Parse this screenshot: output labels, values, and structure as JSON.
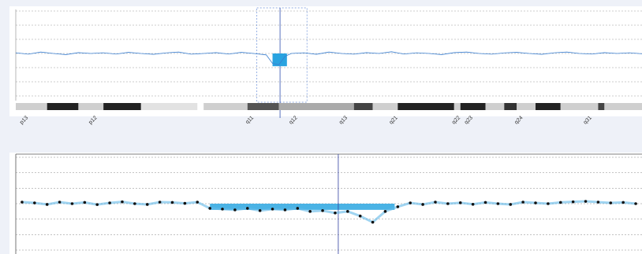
{
  "xlim": [
    0,
    100
  ],
  "top_panel": {
    "ylim": [
      -3,
      3
    ],
    "yticks": [
      -3,
      -2,
      -1,
      0,
      1,
      2,
      3
    ],
    "trace": {
      "color": "#3b7fd0",
      "x": [
        0,
        2,
        4,
        6,
        8,
        10,
        12,
        14,
        16,
        18,
        20,
        22,
        24,
        26,
        28,
        30,
        32,
        34,
        36,
        38,
        40,
        41,
        42,
        43,
        44,
        46,
        48,
        50,
        52,
        54,
        56,
        58,
        60,
        62,
        64,
        66,
        68,
        70,
        72,
        74,
        76,
        78,
        80,
        82,
        84,
        86,
        88,
        90,
        92,
        94,
        96,
        98,
        100
      ],
      "values": [
        0.05,
        -0.05,
        0.1,
        0,
        -0.08,
        0.06,
        0,
        0.05,
        -0.04,
        0.08,
        0,
        -0.06,
        0.04,
        0.1,
        -0.05,
        0,
        0.06,
        -0.04,
        0.08,
        0,
        -0.1,
        -0.7,
        -0.8,
        -0.2,
        0,
        0.05,
        -0.06,
        0.1,
        0,
        -0.05,
        0.06,
        0,
        0.12,
        -0.04,
        0.05,
        0,
        -0.08,
        0.06,
        0.1,
        0,
        -0.05,
        0.04,
        0.08,
        0,
        -0.06,
        0.05,
        0.1,
        0,
        -0.04,
        0.06,
        0,
        0.05,
        -0.02
      ]
    },
    "call": {
      "start": 41,
      "end": 43.3,
      "value": -0.9,
      "color": "#29a3e0"
    },
    "selection": {
      "start": 38.5,
      "end": 46.5,
      "cursor": 42.2
    },
    "bands": [
      {
        "start": 0,
        "end": 5,
        "color": "#cfcfcf"
      },
      {
        "start": 5,
        "end": 10,
        "color": "#222"
      },
      {
        "start": 10,
        "end": 14,
        "color": "#cfcfcf"
      },
      {
        "start": 14,
        "end": 20,
        "color": "#222"
      },
      {
        "start": 20,
        "end": 29,
        "color": "#e2e2e2"
      },
      {
        "start": 30,
        "end": 37,
        "color": "#cfcfcf"
      },
      {
        "start": 37,
        "end": 42,
        "color": "#555"
      },
      {
        "start": 42,
        "end": 54,
        "color": "#aaa"
      },
      {
        "start": 54,
        "end": 57,
        "color": "#444"
      },
      {
        "start": 57,
        "end": 61,
        "color": "#cfcfcf"
      },
      {
        "start": 61,
        "end": 70,
        "color": "#222"
      },
      {
        "start": 70,
        "end": 71,
        "color": "#cfcfcf"
      },
      {
        "start": 71,
        "end": 75,
        "color": "#222"
      },
      {
        "start": 75,
        "end": 78,
        "color": "#cfcfcf"
      },
      {
        "start": 78,
        "end": 80,
        "color": "#333"
      },
      {
        "start": 80,
        "end": 83,
        "color": "#cfcfcf"
      },
      {
        "start": 83,
        "end": 87,
        "color": "#222"
      },
      {
        "start": 87,
        "end": 93,
        "color": "#cfcfcf"
      },
      {
        "start": 93,
        "end": 94,
        "color": "#444"
      },
      {
        "start": 94,
        "end": 100,
        "color": "#cfcfcf"
      }
    ],
    "band_labels": [
      {
        "x": 2,
        "label": "p13"
      },
      {
        "x": 13,
        "label": "p12"
      },
      {
        "x": 38,
        "label": "q11"
      },
      {
        "x": 45,
        "label": "q12"
      },
      {
        "x": 53,
        "label": "q13"
      },
      {
        "x": 61,
        "label": "q21"
      },
      {
        "x": 71,
        "label": "q22"
      },
      {
        "x": 73,
        "label": "q23"
      },
      {
        "x": 81,
        "label": "q24"
      },
      {
        "x": 92,
        "label": "q31"
      }
    ]
  },
  "bottom_panel": {
    "ylim": [
      -3,
      3
    ],
    "yticks": [
      -3,
      -2,
      -1,
      0,
      1,
      2,
      3
    ],
    "cursor": 51.5,
    "region": {
      "start": 31,
      "end": 60.5,
      "value": -0.4,
      "color": "#2aa6e0"
    },
    "points": {
      "color": "#111",
      "x": [
        1,
        3,
        5,
        7,
        9,
        11,
        13,
        15,
        17,
        19,
        21,
        23,
        25,
        27,
        29,
        31,
        33,
        35,
        37,
        39,
        41,
        43,
        45,
        47,
        49,
        51,
        53,
        55,
        57,
        59,
        61,
        63,
        65,
        67,
        69,
        71,
        73,
        75,
        77,
        79,
        81,
        83,
        85,
        87,
        89,
        91,
        93,
        95,
        97,
        99
      ],
      "values": [
        0.1,
        0.05,
        -0.05,
        0.1,
        0,
        0.08,
        -0.06,
        0.05,
        0.12,
        0,
        -0.05,
        0.1,
        0.08,
        0.02,
        0.1,
        -0.3,
        -0.35,
        -0.4,
        -0.3,
        -0.45,
        -0.35,
        -0.4,
        -0.3,
        -0.5,
        -0.45,
        -0.6,
        -0.5,
        -0.8,
        -1.2,
        -0.5,
        -0.2,
        0.05,
        -0.05,
        0.1,
        0,
        0.06,
        -0.04,
        0.08,
        0,
        -0.05,
        0.1,
        0.05,
        0,
        0.08,
        0.12,
        0.15,
        0.1,
        0.05,
        0.08,
        0
      ]
    }
  }
}
